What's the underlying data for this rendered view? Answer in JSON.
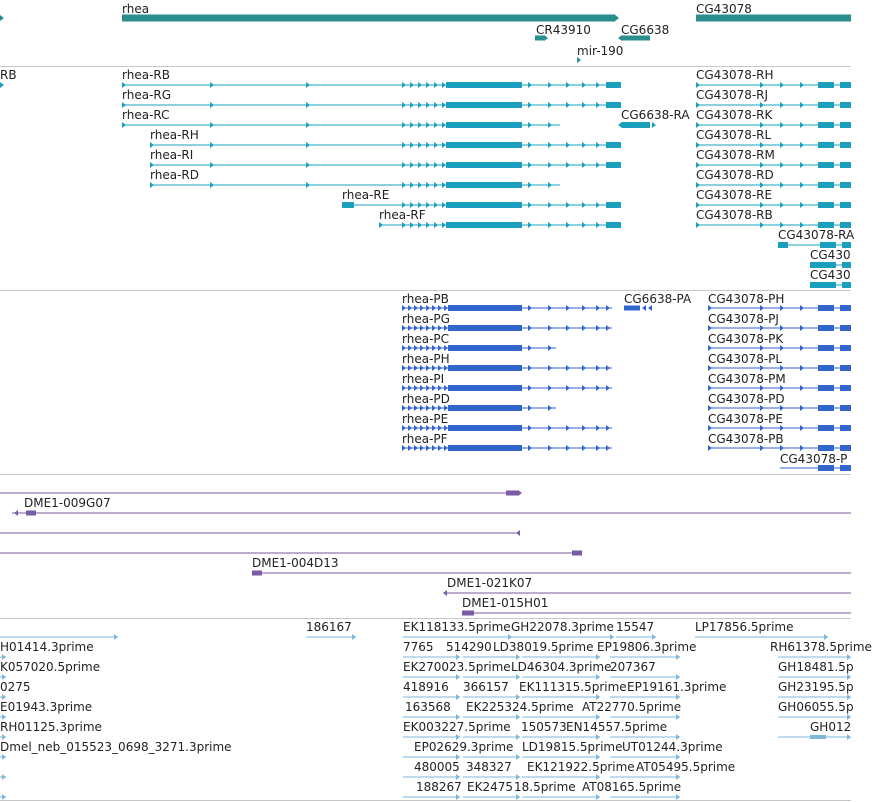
{
  "colors": {
    "gene": "#2b8d8d",
    "transcript": "#1aa0bd",
    "protein": "#3366cc",
    "clone": "#7b5aa6",
    "est": "#7fb7dc",
    "separator": "#c8c8c8"
  },
  "gene_track": {
    "labels": [
      "rhea",
      "CR43910",
      "CG6638",
      "mir-190",
      "CG43078"
    ]
  },
  "transcript_track": {
    "labels": [
      "RB",
      "rhea-RB",
      "rhea-RG",
      "rhea-RC",
      "rhea-RH",
      "rhea-RI",
      "rhea-RD",
      "rhea-RE",
      "rhea-RF",
      "CG6638-RA",
      "CG43078-RH",
      "CG43078-RJ",
      "CG43078-RK",
      "CG43078-RL",
      "CG43078-RM",
      "CG43078-RD",
      "CG43078-RE",
      "CG43078-RB",
      "CG43078-RA",
      "CG430",
      "CG430"
    ]
  },
  "protein_track": {
    "labels": [
      "rhea-PB",
      "rhea-PG",
      "rhea-PC",
      "rhea-PH",
      "rhea-PI",
      "rhea-PD",
      "rhea-PE",
      "rhea-PF",
      "CG6638-PA",
      "CG43078-PH",
      "CG43078-PJ",
      "CG43078-PK",
      "CG43078-PL",
      "CG43078-PM",
      "CG43078-PD",
      "CG43078-PE",
      "CG43078-PB",
      "CG43078-P"
    ]
  },
  "clone_track": {
    "labels": [
      "DME1-009G07",
      "DME1-004D13",
      "DME1-021K07",
      "DME1-015H01"
    ]
  },
  "est_track": {
    "labels": [
      "186167",
      "EK118133.5prime",
      "GH22078.3prime",
      "15547",
      "LP17856.5prime",
      "H01414.3prime",
      "7765",
      "514290",
      "LD38019.5prime",
      "EP19806.3prime",
      "RH61378.5prime",
      "K057020.5prime",
      "EK270023.5prime",
      "LD46304.3prime",
      "207367",
      "GH18481.5p",
      "0275",
      "418916",
      "366157",
      "EK111315.5prime",
      "EP19161.3prime",
      "GH23195.5p",
      "E01943.3prime",
      "163568",
      "EK225324.5prime",
      "AT22770.5prime",
      "GH06055.5p",
      "RH01125.3prime",
      "EK003227.5prime",
      "150573",
      "EN14557.5prime",
      "GH012",
      "Dmel_neb_015523_0698_3271.3prime",
      "EP02629.3prime",
      "LD19815.5prime",
      "UT01244.3prime",
      "480005",
      "348327",
      "EK121922.5prime",
      "AT05495.5prime",
      "188267",
      "EK2475",
      "18.5prime",
      "AT08165.5prime"
    ]
  }
}
